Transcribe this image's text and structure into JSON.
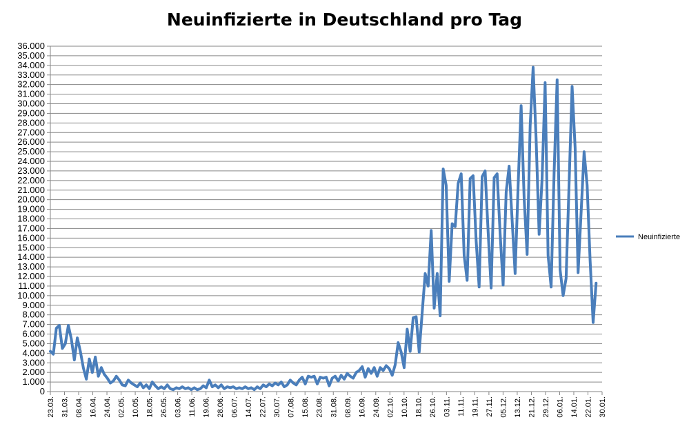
{
  "chart_data": {
    "type": "line",
    "title": "Neuinfizierte in Deutschland pro Tag",
    "xlabel": "",
    "ylabel": "",
    "ylim": [
      0,
      36000
    ],
    "y_step": 1000,
    "grid": true,
    "legend_position": "right",
    "color": "#4a7ebb",
    "y_tick_labels": [
      "0",
      "1.000",
      "2.000",
      "3.000",
      "4.000",
      "5.000",
      "6.000",
      "7.000",
      "8.000",
      "9.000",
      "10.000",
      "11.000",
      "12.000",
      "13.000",
      "14.000",
      "15.000",
      "16.000",
      "17.000",
      "18.000",
      "19.000",
      "20.000",
      "21.000",
      "22.000",
      "23.000",
      "24.000",
      "25.000",
      "26.000",
      "27.000",
      "28.000",
      "29.000",
      "30.000",
      "31.000",
      "32.000",
      "33.000",
      "34.000",
      "35.000",
      "36.000"
    ],
    "x_tick_labels": [
      "23.03.",
      "31.03.",
      "08.04.",
      "16.04.",
      "24.04.",
      "02.05.",
      "10.05.",
      "18.05.",
      "26.05.",
      "03.06.",
      "11.06.",
      "19.06.",
      "28.06.",
      "06.07.",
      "14.07.",
      "22.07.",
      "30.07.",
      "07.08.",
      "15.08.",
      "23.08.",
      "31.08.",
      "08.09.",
      "16.09.",
      "24.09.",
      "02.10.",
      "10.10.",
      "18.10.",
      "26.10.",
      "03.11.",
      "11.11.",
      "19.11.",
      "27.11.",
      "05.12.",
      "13.12.",
      "21.12.",
      "29.12.",
      "06.01.",
      "14.01.",
      "22.01.",
      "30.01."
    ],
    "series": [
      {
        "name": "Neuinfizierte",
        "points": [
          [
            0,
            4200
          ],
          [
            1,
            3900
          ],
          [
            2,
            6600
          ],
          [
            3,
            6900
          ],
          [
            4,
            4500
          ],
          [
            5,
            5000
          ],
          [
            6,
            6900
          ],
          [
            7,
            5500
          ],
          [
            8,
            3300
          ],
          [
            9,
            5600
          ],
          [
            10,
            4200
          ],
          [
            11,
            2500
          ],
          [
            12,
            1300
          ],
          [
            13,
            3400
          ],
          [
            14,
            2000
          ],
          [
            15,
            3600
          ],
          [
            16,
            1600
          ],
          [
            17,
            2500
          ],
          [
            18,
            1800
          ],
          [
            19,
            1400
          ],
          [
            20,
            900
          ],
          [
            21,
            1100
          ],
          [
            22,
            1600
          ],
          [
            23,
            1200
          ],
          [
            24,
            700
          ],
          [
            25,
            600
          ],
          [
            26,
            1200
          ],
          [
            27,
            900
          ],
          [
            28,
            700
          ],
          [
            29,
            500
          ],
          [
            30,
            900
          ],
          [
            31,
            400
          ],
          [
            32,
            700
          ],
          [
            33,
            300
          ],
          [
            34,
            1000
          ],
          [
            35,
            600
          ],
          [
            36,
            300
          ],
          [
            37,
            500
          ],
          [
            38,
            300
          ],
          [
            39,
            700
          ],
          [
            40,
            300
          ],
          [
            41,
            200
          ],
          [
            42,
            400
          ],
          [
            43,
            300
          ],
          [
            44,
            500
          ],
          [
            45,
            300
          ],
          [
            46,
            400
          ],
          [
            47,
            200
          ],
          [
            48,
            400
          ],
          [
            49,
            200
          ],
          [
            50,
            300
          ],
          [
            51,
            600
          ],
          [
            52,
            400
          ],
          [
            53,
            1200
          ],
          [
            54,
            500
          ],
          [
            55,
            700
          ],
          [
            56,
            400
          ],
          [
            57,
            700
          ],
          [
            58,
            300
          ],
          [
            59,
            500
          ],
          [
            60,
            400
          ],
          [
            61,
            500
          ],
          [
            62,
            300
          ],
          [
            63,
            400
          ],
          [
            64,
            300
          ],
          [
            65,
            500
          ],
          [
            66,
            300
          ],
          [
            67,
            400
          ],
          [
            68,
            200
          ],
          [
            69,
            500
          ],
          [
            70,
            300
          ],
          [
            71,
            700
          ],
          [
            72,
            500
          ],
          [
            73,
            800
          ],
          [
            74,
            600
          ],
          [
            75,
            900
          ],
          [
            76,
            700
          ],
          [
            77,
            1000
          ],
          [
            78,
            500
          ],
          [
            79,
            700
          ],
          [
            80,
            1200
          ],
          [
            81,
            900
          ],
          [
            82,
            700
          ],
          [
            83,
            1200
          ],
          [
            84,
            1500
          ],
          [
            85,
            800
          ],
          [
            86,
            1600
          ],
          [
            87,
            1500
          ],
          [
            88,
            1600
          ],
          [
            89,
            800
          ],
          [
            90,
            1500
          ],
          [
            91,
            1400
          ],
          [
            92,
            1500
          ],
          [
            93,
            600
          ],
          [
            94,
            1400
          ],
          [
            95,
            1600
          ],
          [
            96,
            1100
          ],
          [
            97,
            1700
          ],
          [
            98,
            1300
          ],
          [
            99,
            1900
          ],
          [
            100,
            1600
          ],
          [
            101,
            1400
          ],
          [
            102,
            2000
          ],
          [
            103,
            2200
          ],
          [
            104,
            2600
          ],
          [
            105,
            1500
          ],
          [
            106,
            2400
          ],
          [
            107,
            1900
          ],
          [
            108,
            2500
          ],
          [
            109,
            1600
          ],
          [
            110,
            2500
          ],
          [
            111,
            2200
          ],
          [
            112,
            2700
          ],
          [
            113,
            2400
          ],
          [
            114,
            1700
          ],
          [
            115,
            2800
          ],
          [
            116,
            5100
          ],
          [
            117,
            4100
          ],
          [
            118,
            2500
          ],
          [
            119,
            6500
          ],
          [
            120,
            4200
          ],
          [
            121,
            7700
          ],
          [
            122,
            7800
          ],
          [
            123,
            4100
          ],
          [
            124,
            8200
          ],
          [
            125,
            12300
          ],
          [
            126,
            11000
          ],
          [
            127,
            16800
          ],
          [
            128,
            8700
          ],
          [
            129,
            12300
          ],
          [
            130,
            7900
          ],
          [
            131,
            23200
          ],
          [
            132,
            21500
          ],
          [
            133,
            11500
          ],
          [
            134,
            17500
          ],
          [
            135,
            17200
          ],
          [
            136,
            21700
          ],
          [
            137,
            22700
          ],
          [
            138,
            14200
          ],
          [
            139,
            11600
          ],
          [
            140,
            22200
          ],
          [
            141,
            22500
          ],
          [
            142,
            15700
          ],
          [
            143,
            10900
          ],
          [
            144,
            22400
          ],
          [
            145,
            23000
          ],
          [
            146,
            16600
          ],
          [
            147,
            10800
          ],
          [
            148,
            22300
          ],
          [
            149,
            22700
          ],
          [
            150,
            16400
          ],
          [
            151,
            11100
          ],
          [
            152,
            20800
          ],
          [
            153,
            23500
          ],
          [
            154,
            17800
          ],
          [
            155,
            12300
          ],
          [
            156,
            21600
          ],
          [
            157,
            29800
          ],
          [
            158,
            20100
          ],
          [
            159,
            14300
          ],
          [
            160,
            27700
          ],
          [
            161,
            33800
          ],
          [
            162,
            26400
          ],
          [
            163,
            16400
          ],
          [
            164,
            22200
          ],
          [
            165,
            32200
          ],
          [
            166,
            14200
          ],
          [
            167,
            10900
          ],
          [
            168,
            22800
          ],
          [
            169,
            32500
          ],
          [
            170,
            12700
          ],
          [
            171,
            10000
          ],
          [
            172,
            11800
          ],
          [
            173,
            21800
          ],
          [
            174,
            31800
          ],
          [
            175,
            25400
          ],
          [
            176,
            12400
          ],
          [
            177,
            18700
          ],
          [
            178,
            25000
          ],
          [
            179,
            21500
          ],
          [
            180,
            13700
          ],
          [
            181,
            7200
          ],
          [
            182,
            11300
          ]
        ]
      }
    ]
  }
}
